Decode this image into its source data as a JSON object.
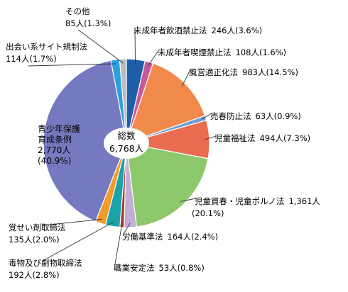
{
  "chart_data": {
    "type": "pie",
    "title": "",
    "center_label": [
      "総数",
      "6,768人"
    ],
    "start": "top, clockwise",
    "slices": [
      {
        "name": "未成年者飲酒禁止法",
        "count": "246人",
        "percent_text": "(3.6%)",
        "value": 3.6,
        "color": "#1f5fa8"
      },
      {
        "name": "未成年者喫煙禁止法",
        "count": "108人",
        "percent_text": "(1.6%)",
        "value": 1.6,
        "color": "#c8589a"
      },
      {
        "name": "風営適正化法",
        "count": "983人",
        "percent_text": "(14.5%)",
        "value": 14.5,
        "color": "#f0894a"
      },
      {
        "name": "売春防止法",
        "count": "63人",
        "percent_text": "(0.9%)",
        "value": 0.9,
        "color": "#6a9ed6"
      },
      {
        "name": "児童福祉法",
        "count": "494人",
        "percent_text": "(7.3%)",
        "value": 7.3,
        "color": "#ea6c50"
      },
      {
        "name": "児童買春・児童ポルノ法",
        "count": "1,361人",
        "percent_text": "(20.1%)",
        "value": 20.1,
        "color": "#8dc86a"
      },
      {
        "name": "労働基準法",
        "count": "164人",
        "percent_text": "(2.4%)",
        "value": 2.4,
        "color": "#c0aed8"
      },
      {
        "name": "職業安定法",
        "count": "53人",
        "percent_text": "(0.8%)",
        "value": 0.8,
        "color": "#b03a2e"
      },
      {
        "name": "毒物及び劇物取締法",
        "count": "192人",
        "percent_text": "(2.8%)",
        "value": 2.8,
        "color": "#1aa3a8"
      },
      {
        "name": "覚せい剤取締法",
        "count": "135人",
        "percent_text": "(2.0%)",
        "value": 2.0,
        "color": "#f29a2a"
      },
      {
        "name": "青少年保護育成条例",
        "count": "2,770人",
        "percent_text": "(40.9%)",
        "value": 40.9,
        "color": "#7479c0"
      },
      {
        "name": "出会い系サイト規制法",
        "count": "114人",
        "percent_text": "(1.7%)",
        "value": 1.7,
        "color": "#2aa0dc"
      },
      {
        "name": "その他",
        "count": "85人",
        "percent_text": "(1.3%)",
        "value": 1.3,
        "color": "#b9bcc0"
      }
    ]
  }
}
